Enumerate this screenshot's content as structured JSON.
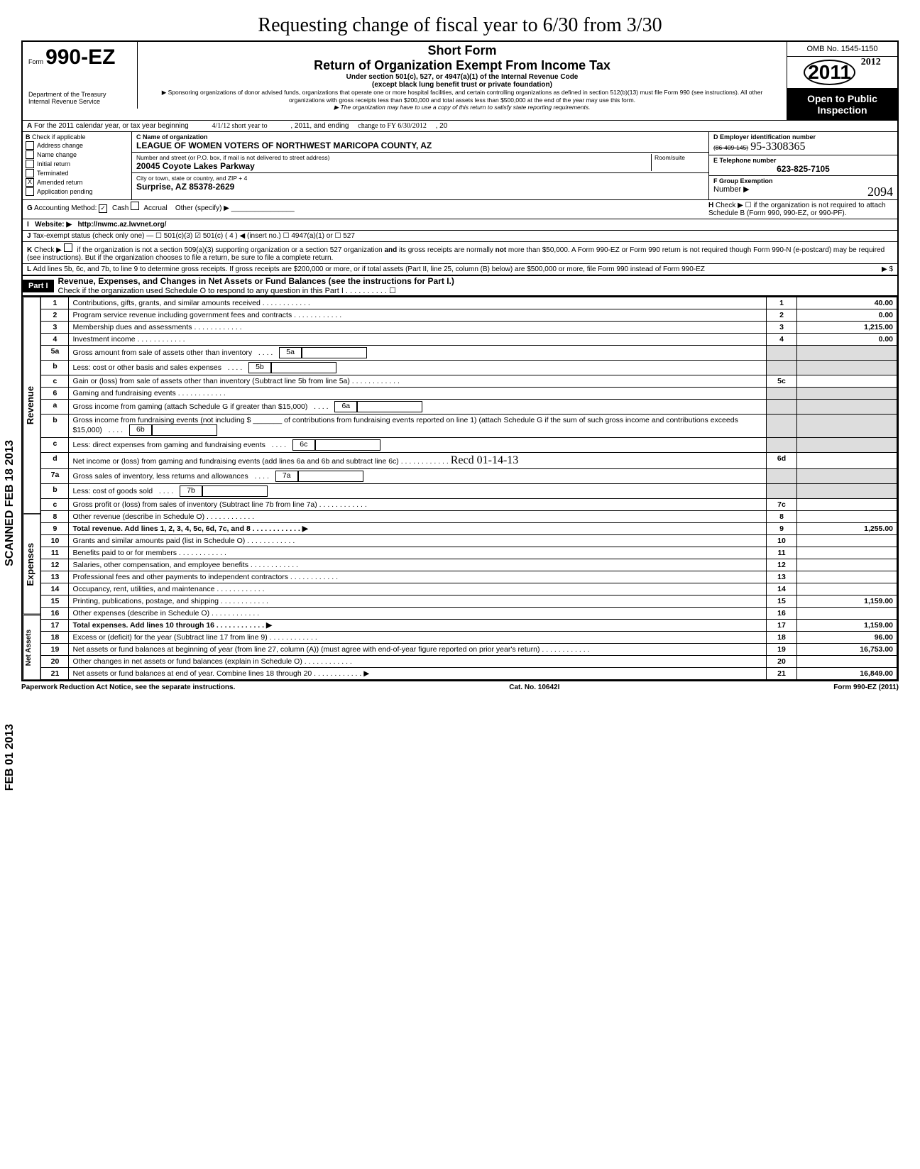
{
  "handwriting_top": "Requesting change of fiscal year to 6/30 from 3/30",
  "header": {
    "form_prefix": "Form",
    "form_number": "990-EZ",
    "dept": "Department of the Treasury",
    "irs": "Internal Revenue Service",
    "short_form": "Short Form",
    "title": "Return of Organization Exempt From Income Tax",
    "sub1": "Under section 501(c), 527, or 4947(a)(1) of the Internal Revenue Code",
    "sub2": "(except black lung benefit trust or private foundation)",
    "sub3": "▶ Sponsoring organizations of donor advised funds, organizations that operate one or more hospital facilities, and certain controlling organizations as defined in section 512(b)(13) must file Form 990 (see instructions). All other organizations with gross receipts less than $200,000 and total assets less than $500,000 at the end of the year may use this form.",
    "sub4": "▶ The organization may have to use a copy of this return to satisfy state reporting requirements.",
    "omb": "OMB No. 1545-1150",
    "year": "2011",
    "open": "Open to Public",
    "inspection": "Inspection",
    "hw_year": "2012"
  },
  "A": {
    "text": "For the 2011 calendar year, or tax year beginning",
    "hw1": "4/1/12 short year to",
    "mid": ", 2011, and ending",
    "hw2": "change to FY 6/30/2012",
    "end": ", 20"
  },
  "B": {
    "label": "Check if applicable",
    "items": [
      "Address change",
      "Name change",
      "Initial return",
      "Terminated",
      "Amended return",
      "Application pending"
    ],
    "checked_idx": 4
  },
  "C": {
    "label": "Name of organization",
    "name": "LEAGUE OF WOMEN VOTERS OF NORTHWEST MARICOPA COUNTY, AZ",
    "addr_label": "Number and street (or P.O. box, if mail is not delivered to street address)",
    "room": "Room/suite",
    "addr": "20045 Coyote Lakes Parkway",
    "city_label": "City or town, state or country, and ZIP + 4",
    "city": "Surprise, AZ 85378-2629"
  },
  "D": {
    "label": "Employer identification number",
    "strike": "(86-409-145)",
    "hw": "95-3308365"
  },
  "E": {
    "label": "Telephone number",
    "val": "623-825-7105"
  },
  "F": {
    "label": "Group Exemption",
    "num": "Number ▶",
    "hw": "2094"
  },
  "G": {
    "label": "Accounting Method:",
    "cash": "Cash",
    "accrual": "Accrual",
    "other": "Other (specify) ▶"
  },
  "H": {
    "text": "Check ▶ ☐ if the organization is not required to attach Schedule B (Form 990, 990-EZ, or 990-PF)."
  },
  "I": {
    "label": "Website: ▶",
    "val": "http://nwmc.az.lwvnet.org/"
  },
  "J": {
    "text": "Tax-exempt status (check only one) — ☐ 501(c)(3)  ☑ 501(c) ( 4 ) ◀ (insert no.) ☐ 4947(a)(1) or  ☐ 527"
  },
  "K": {
    "text": "Check ▶ ☐ if the organization is not a section 509(a)(3) supporting organization or a section 527 organization and its gross receipts are normally not more than $50,000. A Form 990-EZ or Form 990 return is not required though Form 990-N (e-postcard) may be required (see instructions). But if the organization chooses to file a return, be sure to file a complete return."
  },
  "L": {
    "text": "Add lines 5b, 6c, and 7b, to line 9 to determine gross receipts. If gross receipts are $200,000 or more, or if total assets (Part II, line 25, column (B) below) are $500,000 or more, file Form 990 instead of Form 990-EZ",
    "arrow": "▶ $"
  },
  "PartI": {
    "title": "Part I",
    "desc": "Revenue, Expenses, and Changes in Net Assets or Fund Balances (see the instructions for Part I.)",
    "check": "Check if the organization used Schedule O to respond to any question in this Part I . . . . . . . . . . ☐"
  },
  "vert": {
    "rev": "Revenue",
    "exp": "Expenses",
    "net": "Net Assets"
  },
  "stamps": {
    "scanned": "SCANNED FEB 18 2013",
    "recd": "FEB 01 2013"
  },
  "lines": [
    {
      "n": "1",
      "d": "Contributions, gifts, grants, and similar amounts received",
      "box": "1",
      "v": "40.00"
    },
    {
      "n": "2",
      "d": "Program service revenue including government fees and contracts",
      "box": "2",
      "v": "0.00"
    },
    {
      "n": "3",
      "d": "Membership dues and assessments",
      "box": "3",
      "v": "1,215.00"
    },
    {
      "n": "4",
      "d": "Investment income",
      "box": "4",
      "v": "0.00"
    },
    {
      "n": "5a",
      "d": "Gross amount from sale of assets other than inventory",
      "ibox": "5a"
    },
    {
      "n": "b",
      "d": "Less: cost or other basis and sales expenses",
      "ibox": "5b"
    },
    {
      "n": "c",
      "d": "Gain or (loss) from sale of assets other than inventory (Subtract line 5b from line 5a)",
      "box": "5c",
      "v": ""
    },
    {
      "n": "6",
      "d": "Gaming and fundraising events"
    },
    {
      "n": "a",
      "d": "Gross income from gaming (attach Schedule G if greater than $15,000)",
      "ibox": "6a"
    },
    {
      "n": "b",
      "d": "Gross income from fundraising events (not including  $ _______ of contributions from fundraising events reported on line 1) (attach Schedule G if the sum of such gross income and contributions exceeds $15,000)",
      "ibox": "6b"
    },
    {
      "n": "c",
      "d": "Less: direct expenses from gaming and fundraising events",
      "ibox": "6c"
    },
    {
      "n": "d",
      "d": "Net income or (loss) from gaming and fundraising events (add lines 6a and 6b and subtract line 6c)",
      "box": "6d",
      "v": ""
    },
    {
      "n": "7a",
      "d": "Gross sales of inventory, less returns and allowances",
      "ibox": "7a"
    },
    {
      "n": "b",
      "d": "Less: cost of goods sold",
      "ibox": "7b"
    },
    {
      "n": "c",
      "d": "Gross profit or (loss) from sales of inventory (Subtract line 7b from line 7a)",
      "box": "7c",
      "v": ""
    },
    {
      "n": "8",
      "d": "Other revenue (describe in Schedule O)",
      "box": "8",
      "v": ""
    },
    {
      "n": "9",
      "d": "Total revenue. Add lines 1, 2, 3, 4, 5c, 6d, 7c, and 8",
      "box": "9",
      "v": "1,255.00",
      "bold": true,
      "arrow": true
    },
    {
      "n": "10",
      "d": "Grants and similar amounts paid (list in Schedule O)",
      "box": "10",
      "v": ""
    },
    {
      "n": "11",
      "d": "Benefits paid to or for members",
      "box": "11",
      "v": ""
    },
    {
      "n": "12",
      "d": "Salaries, other compensation, and employee benefits",
      "box": "12",
      "v": ""
    },
    {
      "n": "13",
      "d": "Professional fees and other payments to independent contractors",
      "box": "13",
      "v": ""
    },
    {
      "n": "14",
      "d": "Occupancy, rent, utilities, and maintenance",
      "box": "14",
      "v": ""
    },
    {
      "n": "15",
      "d": "Printing, publications, postage, and shipping",
      "box": "15",
      "v": "1,159.00"
    },
    {
      "n": "16",
      "d": "Other expenses (describe in Schedule O)",
      "box": "16",
      "v": ""
    },
    {
      "n": "17",
      "d": "Total expenses. Add lines 10 through 16",
      "box": "17",
      "v": "1,159.00",
      "bold": true,
      "arrow": true
    },
    {
      "n": "18",
      "d": "Excess or (deficit) for the year (Subtract line 17 from line 9)",
      "box": "18",
      "v": "96.00"
    },
    {
      "n": "19",
      "d": "Net assets or fund balances at beginning of year (from line 27, column (A)) (must agree with end-of-year figure reported on prior year's return)",
      "box": "19",
      "v": "16,753.00"
    },
    {
      "n": "20",
      "d": "Other changes in net assets or fund balances (explain in Schedule O)",
      "box": "20",
      "v": ""
    },
    {
      "n": "21",
      "d": "Net assets or fund balances at end of year. Combine lines 18 through 20",
      "box": "21",
      "v": "16,849.00",
      "arrow": true
    }
  ],
  "recd_hw": "Recd 01-14-13",
  "footer": {
    "left": "Paperwork Reduction Act Notice, see the separate instructions.",
    "mid": "Cat. No. 10642I",
    "right": "Form 990-EZ (2011)"
  }
}
